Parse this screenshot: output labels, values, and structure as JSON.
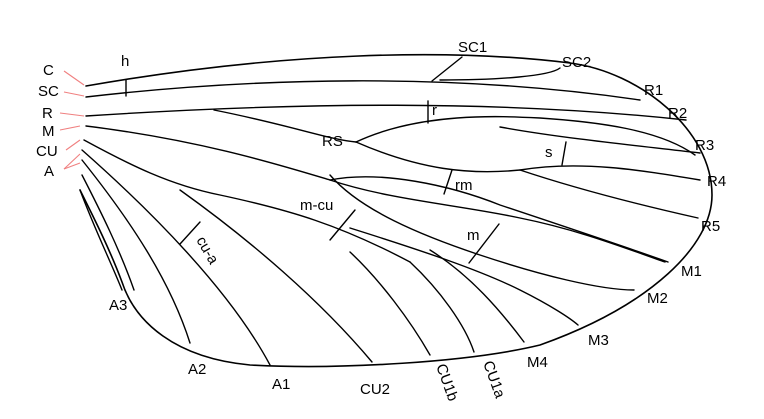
{
  "labels": {
    "c": "C",
    "sc": "SC",
    "r": "R",
    "m": "M",
    "cu": "CU",
    "a": "A",
    "h": "h",
    "sc1": "SC1",
    "sc2": "SC2",
    "r1": "R1",
    "r2": "R2",
    "r3": "R3",
    "r4": "R4",
    "r5": "R5",
    "rs": "RS",
    "r_cross": "r",
    "s_cross": "s",
    "rm": "rm",
    "m_cu": "m-cu",
    "m_cross": "m",
    "cu_a": "cu-a",
    "m1": "M1",
    "m2": "M2",
    "m3": "M3",
    "m4": "M4",
    "cu1a": "CU1a",
    "cu1b": "CU1b",
    "cu2": "CU2",
    "a1": "A1",
    "a2": "A2",
    "a3": "A3"
  },
  "colors": {
    "vein": "#000000",
    "pointer": "#f08080",
    "background": "#ffffff"
  }
}
